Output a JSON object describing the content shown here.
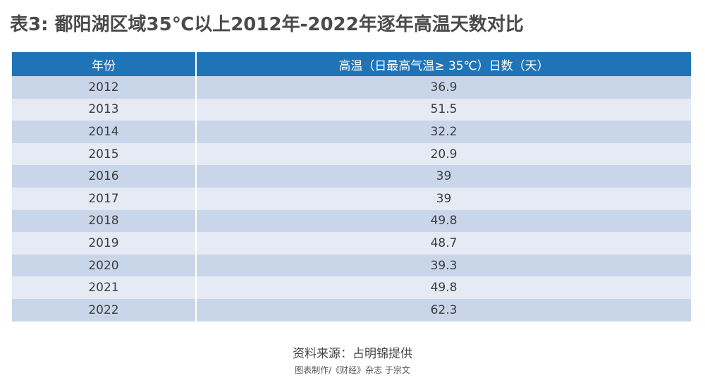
{
  "title": "表3: 鄱阳湖区域35℃以上2012年-2022年逐年高温天数对比",
  "table": {
    "headers": [
      "年份",
      "高温（日最高气温≥ 35℃）日数（天）"
    ],
    "rows": [
      [
        "2012",
        "36.9"
      ],
      [
        "2013",
        "51.5"
      ],
      [
        "2014",
        "32.2"
      ],
      [
        "2015",
        "20.9"
      ],
      [
        "2016",
        "39"
      ],
      [
        "2017",
        "39"
      ],
      [
        "2018",
        "49.8"
      ],
      [
        "2019",
        "48.7"
      ],
      [
        "2020",
        "39.3"
      ],
      [
        "2021",
        "49.8"
      ],
      [
        "2022",
        "62.3"
      ]
    ]
  },
  "source": "资料来源：占明锦提供",
  "credit": "图表制作/《财经》杂志 于宗文",
  "colors": {
    "header_bg": "#1f74b8",
    "row_dark": "#c9d6ea",
    "row_light": "#e5eaf4"
  }
}
